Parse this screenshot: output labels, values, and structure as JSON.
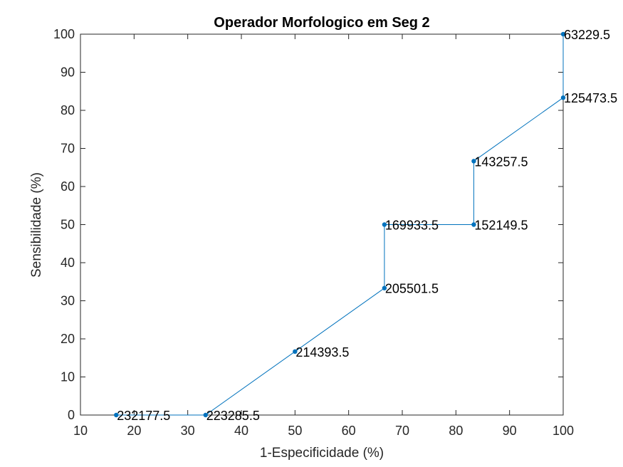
{
  "chart_data": {
    "type": "line",
    "title": "Operador Morfologico em Seg 2",
    "xlabel": "1-Especificidade (%)",
    "ylabel": "Sensibilidade (%)",
    "xlim": [
      10,
      100
    ],
    "ylim": [
      0,
      100
    ],
    "xticks": [
      "10",
      "20",
      "30",
      "40",
      "50",
      "60",
      "70",
      "80",
      "90",
      "100"
    ],
    "yticks": [
      "0",
      "10",
      "20",
      "30",
      "40",
      "50",
      "60",
      "70",
      "80",
      "90",
      "100"
    ],
    "grid": false,
    "series": [
      {
        "color": "#0072BD",
        "points": [
          {
            "x": 16.67,
            "y": 0,
            "label": "232177.5"
          },
          {
            "x": 33.33,
            "y": 0,
            "label": "223285.5"
          },
          {
            "x": 50.0,
            "y": 16.67,
            "label": "214393.5"
          },
          {
            "x": 66.67,
            "y": 33.33,
            "label": "205501.5"
          },
          {
            "x": 66.67,
            "y": 50.0,
            "label": "169933.5"
          },
          {
            "x": 83.33,
            "y": 50.0,
            "label": "152149.5"
          },
          {
            "x": 83.33,
            "y": 66.67,
            "label": "143257.5"
          },
          {
            "x": 100.0,
            "y": 83.33,
            "label": "125473.5"
          },
          {
            "x": 100.0,
            "y": 100.0,
            "label": "63229.5"
          }
        ]
      }
    ]
  }
}
